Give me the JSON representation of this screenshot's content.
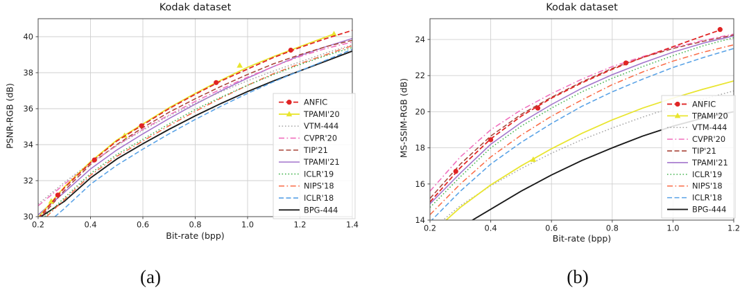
{
  "figure": {
    "captions": {
      "a": "(a)",
      "b": "(b)"
    }
  },
  "chart_data": [
    {
      "id": "psnr",
      "type": "line",
      "title": "Kodak dataset",
      "xlabel": "Bit-rate (bpp)",
      "ylabel": "PSNR-RGB (dB)",
      "xlim": [
        0.2,
        1.4
      ],
      "ylim": [
        30,
        41
      ],
      "xticks": [
        0.2,
        0.4,
        0.6,
        0.8,
        1.0,
        1.2,
        1.4
      ],
      "yticks": [
        30,
        32,
        34,
        36,
        38,
        40
      ],
      "grid": true,
      "legend_position": "lower-right-inside",
      "series": [
        {
          "name": "ANFIC",
          "color": "#e02424",
          "style": "dashed",
          "marker": "circle",
          "width": 1.8,
          "x": [
            0.2,
            0.3,
            0.4,
            0.5,
            0.6,
            0.7,
            0.8,
            0.9,
            1.0,
            1.1,
            1.2,
            1.3,
            1.4
          ],
          "y": [
            29.9,
            31.6,
            33.0,
            34.2,
            35.1,
            36.0,
            36.8,
            37.55,
            38.2,
            38.85,
            39.4,
            39.9,
            40.35
          ],
          "marker_points": [
            [
              0.275,
              31.2
            ],
            [
              0.415,
              33.15
            ],
            [
              0.595,
              35.05
            ],
            [
              0.88,
              37.45
            ],
            [
              1.165,
              39.25
            ]
          ]
        },
        {
          "name": "TPAMI'20",
          "color": "#e9e52f",
          "style": "solid",
          "marker": "triangle",
          "width": 1.8,
          "x": [
            0.2,
            0.3,
            0.4,
            0.5,
            0.6,
            0.7,
            0.8,
            0.9,
            1.0,
            1.1,
            1.2,
            1.33
          ],
          "y": [
            29.95,
            31.65,
            33.05,
            34.25,
            35.15,
            36.05,
            36.85,
            37.6,
            38.3,
            38.9,
            39.45,
            40.15
          ],
          "marker_points": [
            [
              0.25,
              30.85
            ],
            [
              0.53,
              34.5
            ],
            [
              0.97,
              38.4
            ],
            [
              1.33,
              40.15
            ]
          ]
        },
        {
          "name": "VTM-444",
          "color": "#a6a6a6",
          "style": "dotted",
          "marker": null,
          "x": [
            0.2,
            0.3,
            0.4,
            0.5,
            0.6,
            0.7,
            0.8,
            0.9,
            1.0,
            1.1,
            1.2,
            1.3,
            1.4
          ],
          "y": [
            30.7,
            31.9,
            33.0,
            33.95,
            34.8,
            35.6,
            36.3,
            36.95,
            37.55,
            38.1,
            38.6,
            39.1,
            39.55
          ]
        },
        {
          "name": "CVPR'20",
          "color": "#f06ebd",
          "style": "dashdot",
          "marker": null,
          "x": [
            0.2,
            0.3,
            0.4,
            0.5,
            0.6,
            0.7,
            0.8,
            0.9,
            1.0,
            1.1,
            1.2,
            1.3,
            1.4
          ],
          "y": [
            30.6,
            31.8,
            32.95,
            33.95,
            34.85,
            35.65,
            36.4,
            37.1,
            37.75,
            38.35,
            38.9,
            39.35,
            39.7
          ]
        },
        {
          "name": "TIP'21",
          "color": "#a84438",
          "style": "dashed",
          "marker": null,
          "x": [
            0.2,
            0.3,
            0.4,
            0.5,
            0.6,
            0.7,
            0.8,
            0.9,
            1.0,
            1.1,
            1.2,
            1.3,
            1.4
          ],
          "y": [
            29.8,
            31.45,
            32.9,
            34.0,
            34.95,
            35.8,
            36.55,
            37.25,
            37.9,
            38.5,
            39.0,
            39.45,
            39.8
          ]
        },
        {
          "name": "TPAMI'21",
          "color": "#a273cb",
          "style": "solid",
          "marker": null,
          "x": [
            0.2,
            0.3,
            0.4,
            0.5,
            0.6,
            0.7,
            0.8,
            0.9,
            1.0,
            1.1,
            1.2,
            1.3,
            1.4
          ],
          "y": [
            30.1,
            31.35,
            32.65,
            33.7,
            34.6,
            35.45,
            36.25,
            37.0,
            37.7,
            38.35,
            38.95,
            39.45,
            39.9
          ]
        },
        {
          "name": "ICLR'19",
          "color": "#44b34f",
          "style": "dotted",
          "marker": null,
          "x": [
            0.2,
            0.3,
            0.4,
            0.5,
            0.6,
            0.7,
            0.8,
            0.9,
            1.0,
            1.1,
            1.2,
            1.3,
            1.4
          ],
          "y": [
            29.65,
            31.05,
            32.4,
            33.45,
            34.3,
            35.15,
            35.95,
            36.65,
            37.3,
            37.9,
            38.45,
            38.95,
            39.4
          ]
        },
        {
          "name": "NIPS'18",
          "color": "#fa6b46",
          "style": "dashdot",
          "marker": null,
          "x": [
            0.2,
            0.3,
            0.4,
            0.5,
            0.6,
            0.7,
            0.8,
            0.9,
            1.0,
            1.1,
            1.2,
            1.3,
            1.4
          ],
          "y": [
            29.55,
            30.95,
            32.3,
            33.35,
            34.2,
            35.05,
            35.85,
            36.6,
            37.3,
            37.95,
            38.5,
            39.0,
            39.5
          ]
        },
        {
          "name": "ICLR'18",
          "color": "#57a1e6",
          "style": "dashed",
          "marker": null,
          "x": [
            0.2,
            0.3,
            0.4,
            0.5,
            0.6,
            0.7,
            0.8,
            0.9,
            1.0,
            1.1,
            1.2,
            1.3,
            1.4
          ],
          "y": [
            29.2,
            30.45,
            31.8,
            32.85,
            33.75,
            34.6,
            35.4,
            36.15,
            36.85,
            37.5,
            38.1,
            38.7,
            39.3
          ]
        },
        {
          "name": "BPG-444",
          "color": "#1a1a1a",
          "style": "solid",
          "marker": null,
          "width": 1.9,
          "x": [
            0.2,
            0.3,
            0.4,
            0.5,
            0.6,
            0.7,
            0.8,
            0.9,
            1.0,
            1.1,
            1.2,
            1.3,
            1.4
          ],
          "y": [
            29.9,
            30.85,
            32.15,
            33.2,
            34.05,
            34.85,
            35.6,
            36.3,
            36.95,
            37.55,
            38.1,
            38.65,
            39.2
          ]
        }
      ]
    },
    {
      "id": "msssim",
      "type": "line",
      "title": "Kodak dataset",
      "xlabel": "Bit-rate (bpp)",
      "ylabel": "MS-SSIM-RGB (dB)",
      "xlim": [
        0.2,
        1.2
      ],
      "ylim": [
        14,
        25.15
      ],
      "xticks": [
        0.2,
        0.4,
        0.6,
        0.8,
        1.0,
        1.2
      ],
      "yticks": [
        14,
        16,
        18,
        20,
        22,
        24
      ],
      "grid": true,
      "legend_position": "lower-right-inside",
      "series": [
        {
          "name": "ANFIC",
          "color": "#e02424",
          "style": "dashed",
          "marker": "circle",
          "width": 1.8,
          "x": [
            0.2,
            0.3,
            0.4,
            0.5,
            0.6,
            0.7,
            0.8,
            0.9,
            1.0,
            1.1,
            1.16
          ],
          "y": [
            15.0,
            16.9,
            18.5,
            19.75,
            20.75,
            21.6,
            22.35,
            23.0,
            23.6,
            24.2,
            24.55
          ],
          "marker_points": [
            [
              0.285,
              16.7
            ],
            [
              0.4,
              18.45
            ],
            [
              0.555,
              20.2
            ],
            [
              0.845,
              22.7
            ],
            [
              1.155,
              24.55
            ]
          ]
        },
        {
          "name": "TPAMI'20",
          "color": "#e9e52f",
          "style": "solid",
          "marker": "triangle",
          "width": 1.8,
          "x": [
            0.2,
            0.3,
            0.4,
            0.5,
            0.6,
            0.7,
            0.8,
            0.9,
            1.0,
            1.1,
            1.2
          ],
          "y": [
            13.2,
            14.7,
            15.95,
            17.0,
            17.95,
            18.8,
            19.55,
            20.2,
            20.75,
            21.25,
            21.7
          ],
          "marker_points": [
            [
              0.54,
              17.35
            ]
          ]
        },
        {
          "name": "VTM-444",
          "color": "#a6a6a6",
          "style": "dotted",
          "marker": null,
          "x": [
            0.2,
            0.3,
            0.4,
            0.5,
            0.6,
            0.7,
            0.8,
            0.9,
            1.0,
            1.1,
            1.2
          ],
          "y": [
            13.4,
            14.8,
            15.9,
            16.85,
            17.7,
            18.45,
            19.1,
            19.7,
            20.25,
            20.7,
            21.15
          ]
        },
        {
          "name": "CVPR'20",
          "color": "#f06ebd",
          "style": "dashdot",
          "marker": null,
          "x": [
            0.2,
            0.3,
            0.4,
            0.5,
            0.6,
            0.7,
            0.8,
            0.9,
            1.0,
            1.1,
            1.2
          ],
          "y": [
            15.6,
            17.5,
            19.0,
            20.1,
            21.0,
            21.8,
            22.5,
            23.05,
            23.55,
            23.95,
            24.3
          ]
        },
        {
          "name": "TIP'21",
          "color": "#a84438",
          "style": "dashed",
          "marker": null,
          "x": [
            0.2,
            0.3,
            0.4,
            0.5,
            0.6,
            0.7,
            0.8,
            0.9,
            1.0,
            1.1,
            1.2
          ],
          "y": [
            15.2,
            17.1,
            18.65,
            19.85,
            20.8,
            21.65,
            22.4,
            23.0,
            23.5,
            23.9,
            24.25
          ]
        },
        {
          "name": "TPAMI'21",
          "color": "#a273cb",
          "style": "solid",
          "marker": null,
          "x": [
            0.2,
            0.3,
            0.4,
            0.5,
            0.6,
            0.7,
            0.8,
            0.9,
            1.0,
            1.1,
            1.2
          ],
          "y": [
            14.9,
            16.6,
            18.2,
            19.4,
            20.4,
            21.3,
            22.05,
            22.7,
            23.3,
            23.8,
            24.2
          ]
        },
        {
          "name": "ICLR'19",
          "color": "#44b34f",
          "style": "dotted",
          "marker": null,
          "x": [
            0.2,
            0.3,
            0.4,
            0.5,
            0.6,
            0.7,
            0.8,
            0.9,
            1.0,
            1.1,
            1.2
          ],
          "y": [
            14.7,
            16.4,
            18.0,
            19.2,
            20.2,
            21.1,
            21.85,
            22.5,
            23.1,
            23.65,
            24.1
          ]
        },
        {
          "name": "NIPS'18",
          "color": "#fa6b46",
          "style": "dashdot",
          "marker": null,
          "x": [
            0.2,
            0.3,
            0.4,
            0.5,
            0.6,
            0.7,
            0.8,
            0.9,
            1.0,
            1.1,
            1.2
          ],
          "y": [
            14.3,
            16.0,
            17.5,
            18.7,
            19.75,
            20.65,
            21.5,
            22.2,
            22.8,
            23.3,
            23.7
          ]
        },
        {
          "name": "ICLR'18",
          "color": "#57a1e6",
          "style": "dashed",
          "marker": null,
          "x": [
            0.2,
            0.3,
            0.4,
            0.5,
            0.6,
            0.7,
            0.8,
            0.9,
            1.0,
            1.1,
            1.2
          ],
          "y": [
            13.9,
            15.6,
            17.1,
            18.3,
            19.35,
            20.3,
            21.1,
            21.8,
            22.45,
            23.0,
            23.5
          ]
        },
        {
          "name": "BPG-444",
          "color": "#1a1a1a",
          "style": "solid",
          "marker": null,
          "width": 1.9,
          "x": [
            0.2,
            0.3,
            0.4,
            0.5,
            0.6,
            0.7,
            0.8,
            0.9,
            1.0,
            1.1,
            1.2
          ],
          "y": [
            12.7,
            13.6,
            14.6,
            15.6,
            16.5,
            17.3,
            18.0,
            18.65,
            19.2,
            19.65,
            20.0
          ]
        }
      ]
    }
  ]
}
